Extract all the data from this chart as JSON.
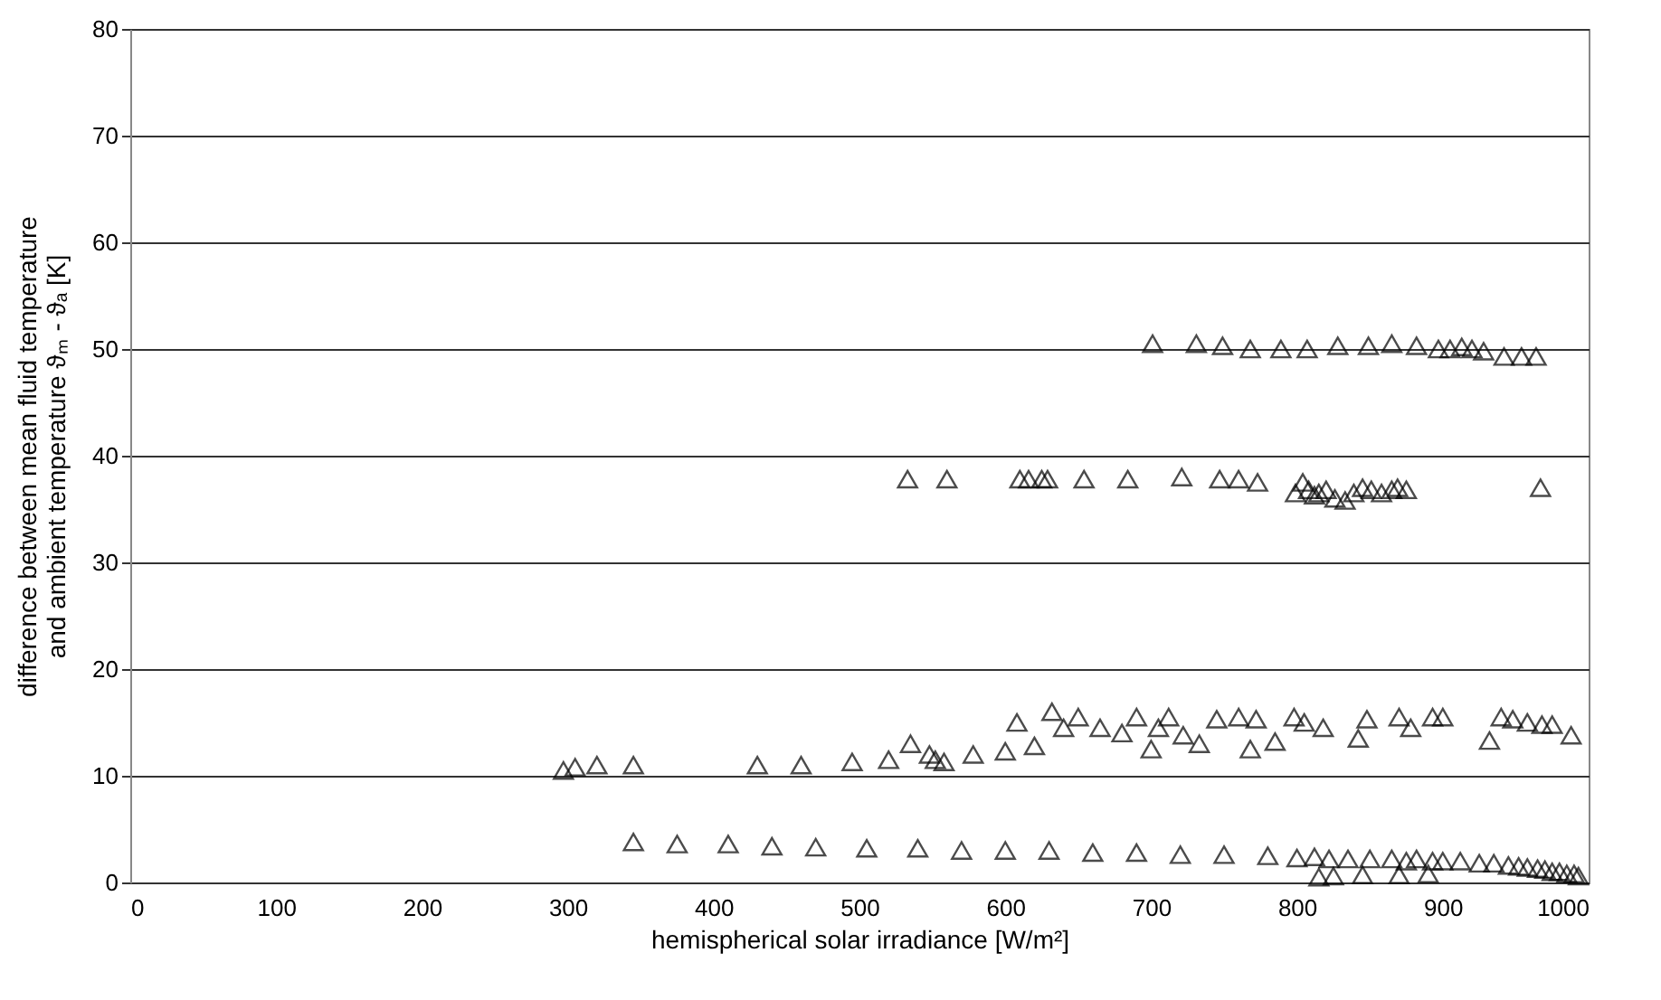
{
  "chart_data": {
    "type": "scatter",
    "xlabel": "hemispherical solar irradiance [W/m²]",
    "ylabel": [
      "difference between mean fluid temperature",
      "and ambient temperature ϑₘ - ϑₐ [K]"
    ],
    "xlim": [
      0,
      1000
    ],
    "ylim": [
      0,
      80
    ],
    "xticks": [
      0,
      100,
      200,
      300,
      400,
      500,
      600,
      700,
      800,
      900,
      1000
    ],
    "yticks": [
      0,
      10,
      20,
      30,
      40,
      50,
      60,
      70,
      80
    ],
    "grid": "y",
    "marker": "triangle",
    "series": [
      {
        "color": "#000000",
        "x": [
          701,
          731,
          749,
          768,
          789,
          807,
          828,
          849,
          865,
          882,
          897,
          905,
          913,
          920,
          928,
          942,
          954,
          964
        ],
        "values": [
          50.5,
          50.5,
          50.3,
          50,
          50,
          50,
          50.3,
          50.3,
          50.5,
          50.3,
          50,
          50,
          50.2,
          50,
          49.8,
          49.3,
          49.3,
          49.3
        ]
      },
      {
        "color": "#000000",
        "x": [
          533,
          560,
          610,
          616,
          625,
          629,
          654,
          684,
          721,
          747,
          760,
          773,
          799,
          804,
          808,
          812,
          815,
          820,
          826,
          833,
          839,
          845,
          851,
          858,
          865,
          869,
          875,
          967
        ],
        "values": [
          37.8,
          37.8,
          37.8,
          37.8,
          37.8,
          37.8,
          37.8,
          37.8,
          38,
          37.8,
          37.8,
          37.5,
          36.5,
          37.5,
          36.8,
          36.3,
          36.5,
          36.8,
          36,
          35.8,
          36.5,
          37,
          36.8,
          36.5,
          36.8,
          37,
          36.8,
          37
        ]
      },
      {
        "color": "#000000",
        "x": [
          297,
          305,
          320,
          345,
          430,
          460,
          495,
          520,
          535,
          548,
          552,
          558,
          578,
          600,
          608,
          620,
          632,
          640,
          650,
          665,
          680,
          690,
          700,
          705,
          712,
          722,
          733,
          745,
          760,
          768,
          772,
          785,
          798,
          805,
          818,
          842,
          848,
          870,
          878,
          893,
          900,
          932,
          940,
          948,
          958,
          968,
          975,
          988
        ],
        "values": [
          10.5,
          10.8,
          11,
          11,
          11,
          11,
          11.3,
          11.5,
          13,
          12,
          11.5,
          11.3,
          12,
          12.3,
          15,
          12.8,
          16,
          14.5,
          15.5,
          14.5,
          14,
          15.5,
          12.5,
          14.5,
          15.5,
          13.8,
          13,
          15.3,
          15.5,
          12.5,
          15.3,
          13.2,
          15.5,
          15,
          14.5,
          13.5,
          15.3,
          15.5,
          14.5,
          15.5,
          15.5,
          13.3,
          15.5,
          15.3,
          15,
          14.8,
          14.8,
          13.8
        ]
      },
      {
        "color": "#000000",
        "x": [
          345,
          375,
          410,
          440,
          470,
          505,
          540,
          570,
          600,
          630,
          660,
          690,
          720,
          750,
          780,
          800,
          812,
          822,
          835,
          850,
          865,
          875,
          882,
          893,
          900,
          912,
          925,
          935,
          945,
          952,
          958,
          965,
          970,
          975,
          980,
          985,
          990,
          993,
          815,
          825,
          845,
          870,
          890
        ],
        "values": [
          3.8,
          3.6,
          3.6,
          3.4,
          3.3,
          3.2,
          3.2,
          3,
          3,
          3,
          2.8,
          2.8,
          2.6,
          2.6,
          2.5,
          2.3,
          2.4,
          2.2,
          2.2,
          2.2,
          2.2,
          2,
          2.2,
          2,
          2,
          2,
          1.8,
          1.8,
          1.6,
          1.5,
          1.4,
          1.3,
          1.2,
          1,
          1,
          0.8,
          0.8,
          0.6,
          0.5,
          0.6,
          0.7,
          0.7,
          0.8
        ]
      }
    ]
  }
}
